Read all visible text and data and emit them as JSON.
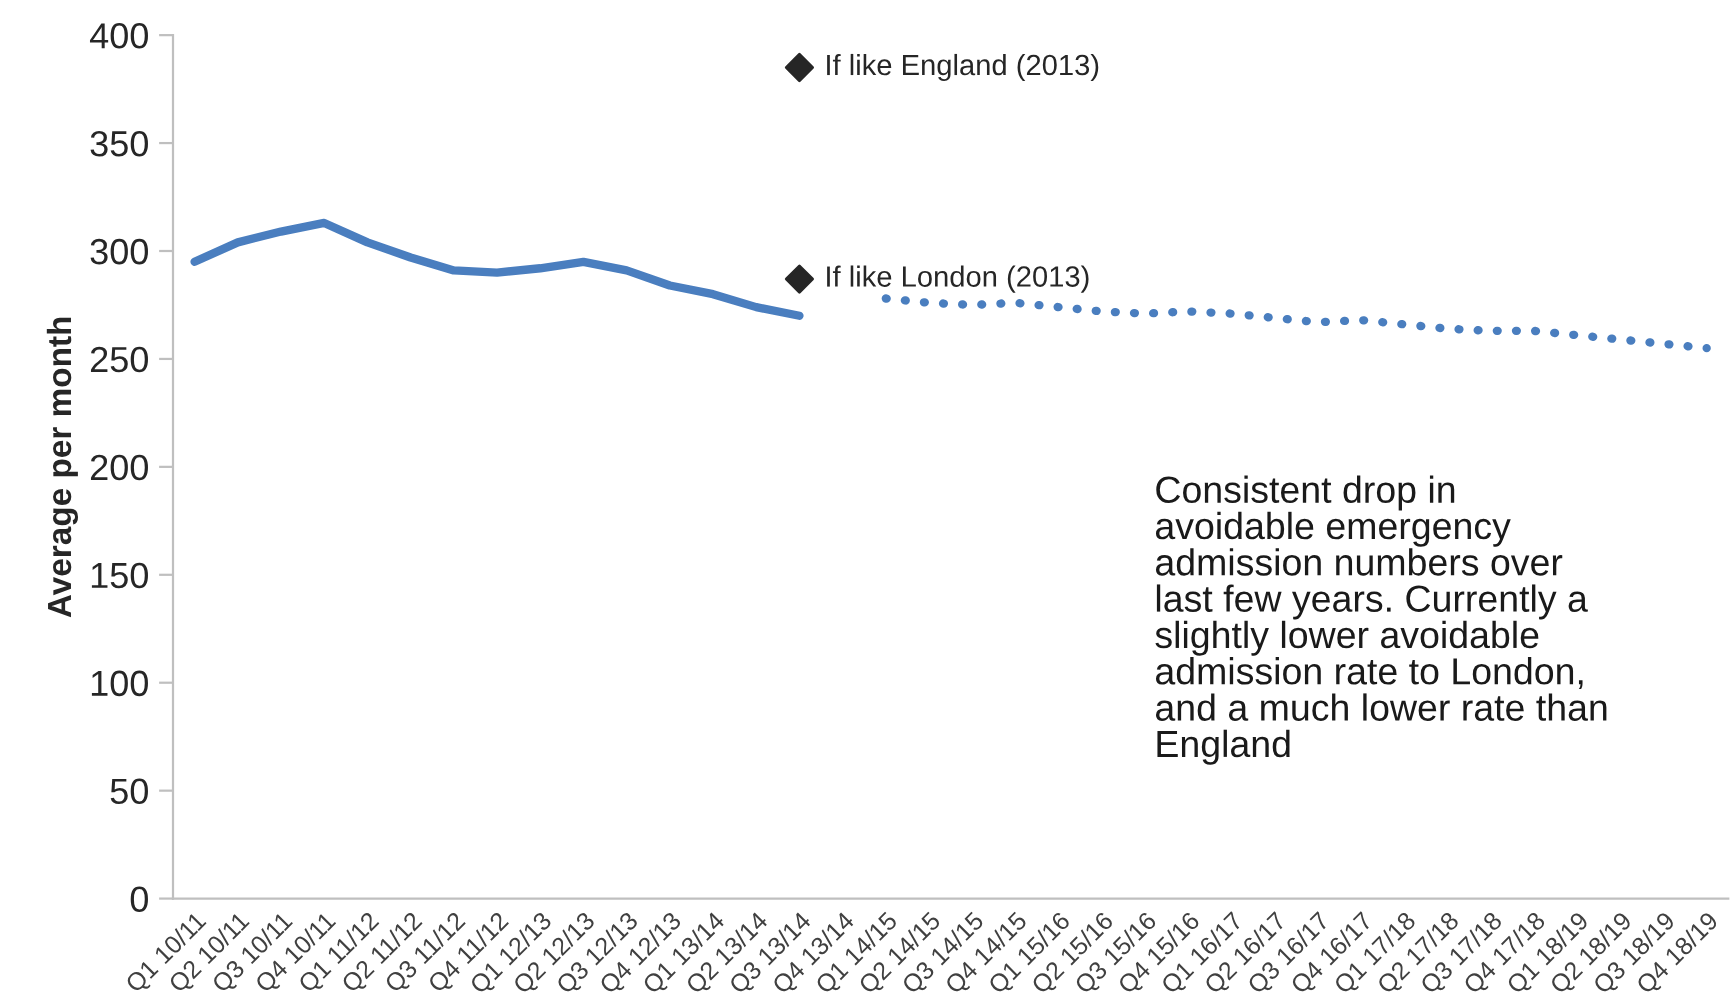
{
  "chart_data": {
    "type": "line",
    "ylabel": "Average per month",
    "categories": [
      "Q1 10/11",
      "Q2 10/11",
      "Q3 10/11",
      "Q4 10/11",
      "Q1 11/12",
      "Q2 11/12",
      "Q3 11/12",
      "Q4 11/12",
      "Q1 12/13",
      "Q2 12/13",
      "Q3 12/13",
      "Q4 12/13",
      "Q1 13/14",
      "Q2 13/14",
      "Q3 13/14",
      "Q4 13/14",
      "Q1 14/15",
      "Q2 14/15",
      "Q3 14/15",
      "Q4 14/15",
      "Q1 15/16",
      "Q2 15/16",
      "Q3 15/16",
      "Q4 15/16",
      "Q1 16/17",
      "Q2 16/17",
      "Q3 16/17",
      "Q4 16/17",
      "Q1 17/18",
      "Q2 17/18",
      "Q3 17/18",
      "Q4 17/18",
      "Q1 18/19",
      "Q2 18/19",
      "Q3 18/19",
      "Q4 18/19"
    ],
    "series": [
      {
        "color": "#4a7ebf",
        "line_style": "solid",
        "values": [
          295,
          304,
          309,
          313,
          304,
          297,
          291,
          290,
          292,
          295,
          291,
          284,
          280,
          274,
          270,
          null,
          null,
          null,
          null,
          null,
          null,
          null,
          null,
          null,
          null,
          null,
          null,
          null,
          null,
          null,
          null,
          null,
          null,
          null,
          null,
          null
        ]
      },
      {
        "color": "#4a7ebf",
        "line_style": "dotted",
        "values": [
          null,
          null,
          null,
          null,
          null,
          null,
          null,
          null,
          null,
          null,
          null,
          null,
          null,
          null,
          null,
          null,
          278,
          276,
          275,
          276,
          274,
          272,
          271,
          272,
          271,
          269,
          267,
          268,
          266,
          264,
          263,
          263,
          261,
          259,
          257,
          255
        ]
      },
      {
        "type": "scatter",
        "name": "If like England (2013)",
        "color": "#262626",
        "marker": "diamond",
        "values": [
          null,
          null,
          null,
          null,
          null,
          null,
          null,
          null,
          null,
          null,
          null,
          null,
          null,
          null,
          385,
          null,
          null,
          null,
          null,
          null,
          null,
          null,
          null,
          null,
          null,
          null,
          null,
          null,
          null,
          null,
          null,
          null,
          null,
          null,
          null,
          null
        ]
      },
      {
        "type": "scatter",
        "name": "If like London (2013)",
        "color": "#262626",
        "marker": "diamond",
        "values": [
          null,
          null,
          null,
          null,
          null,
          null,
          null,
          null,
          null,
          null,
          null,
          null,
          null,
          null,
          287,
          null,
          null,
          null,
          null,
          null,
          null,
          null,
          null,
          null,
          null,
          null,
          null,
          null,
          null,
          null,
          null,
          null,
          null,
          null,
          null,
          null
        ]
      }
    ],
    "ylim": [
      0,
      400
    ],
    "yticks": [
      0,
      50,
      100,
      150,
      200,
      250,
      300,
      350,
      400
    ],
    "annotations": [
      "Consistent drop in\navoidable emergency\nadmission numbers over\nlast few years. Currently a\nslightly lower avoidable\nadmission rate to London,\nand a much lower rate than\nEngland"
    ]
  }
}
